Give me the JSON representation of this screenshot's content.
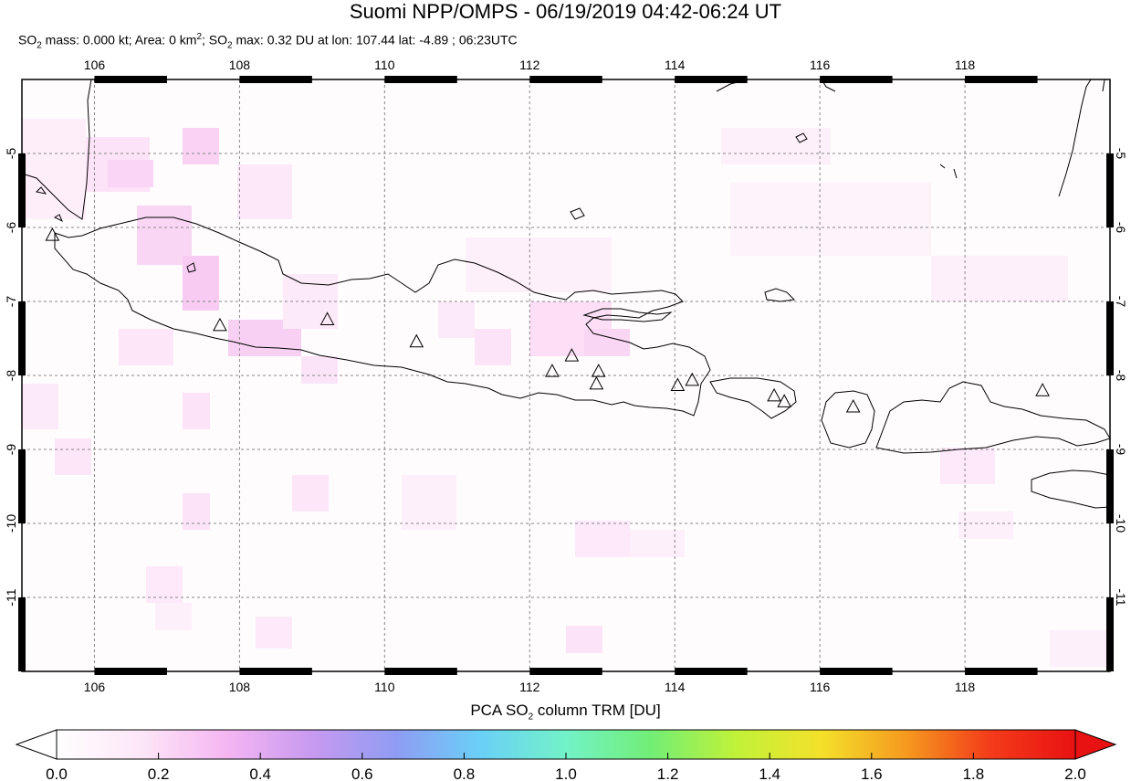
{
  "title": "Suomi NPP/OMPS - 06/19/2019 04:42-06:24 UT",
  "subtitle": {
    "mass_label": "SO",
    "mass_sub": "2",
    "mass_text": " mass: 0.000 kt; Area: 0 km",
    "area_sup": "2",
    "max_text": "; SO",
    "max_sub": "2",
    "max_rest": " max: 0.32 DU at lon: 107.44 lat: -4.89 ; 06:23UTC"
  },
  "map": {
    "lon_range": [
      105,
      120
    ],
    "lat_range": [
      -12,
      -4
    ],
    "lon_ticks": [
      "106",
      "108",
      "110",
      "112",
      "114",
      "116",
      "118"
    ],
    "lat_ticks": [
      "-5",
      "-6",
      "-7",
      "-8",
      "-9",
      "-10",
      "-11"
    ],
    "grid": true,
    "volcanoes": [
      {
        "lon": 105.42,
        "lat": -6.1
      },
      {
        "lon": 107.73,
        "lat": -7.32
      },
      {
        "lon": 109.21,
        "lat": -7.24
      },
      {
        "lon": 110.44,
        "lat": -7.54
      },
      {
        "lon": 112.31,
        "lat": -7.94
      },
      {
        "lon": 112.58,
        "lat": -7.73
      },
      {
        "lon": 112.95,
        "lat": -7.94
      },
      {
        "lon": 112.92,
        "lat": -8.11
      },
      {
        "lon": 114.04,
        "lat": -8.13
      },
      {
        "lon": 114.24,
        "lat": -8.06
      },
      {
        "lon": 115.37,
        "lat": -8.27
      },
      {
        "lon": 115.51,
        "lat": -8.35
      },
      {
        "lon": 116.46,
        "lat": -8.42
      },
      {
        "lon": 119.07,
        "lat": -8.2
      }
    ]
  },
  "colorbar": {
    "title": "PCA SO",
    "title_sub": "2",
    "title_rest": " column TRM [DU]",
    "ticks": [
      "0.0",
      "0.2",
      "0.4",
      "0.6",
      "0.8",
      "1.0",
      "1.2",
      "1.4",
      "1.6",
      "1.8",
      "2.0"
    ],
    "range": [
      0,
      2
    ],
    "colors": [
      "#ffffff",
      "#fce6f7",
      "#f5b6f2",
      "#c89af0",
      "#8f9cf3",
      "#6ad0f7",
      "#72f2c8",
      "#72ee76",
      "#c0f238",
      "#f4e12a",
      "#f59a1f",
      "#f43b1a",
      "#e81212"
    ]
  }
}
